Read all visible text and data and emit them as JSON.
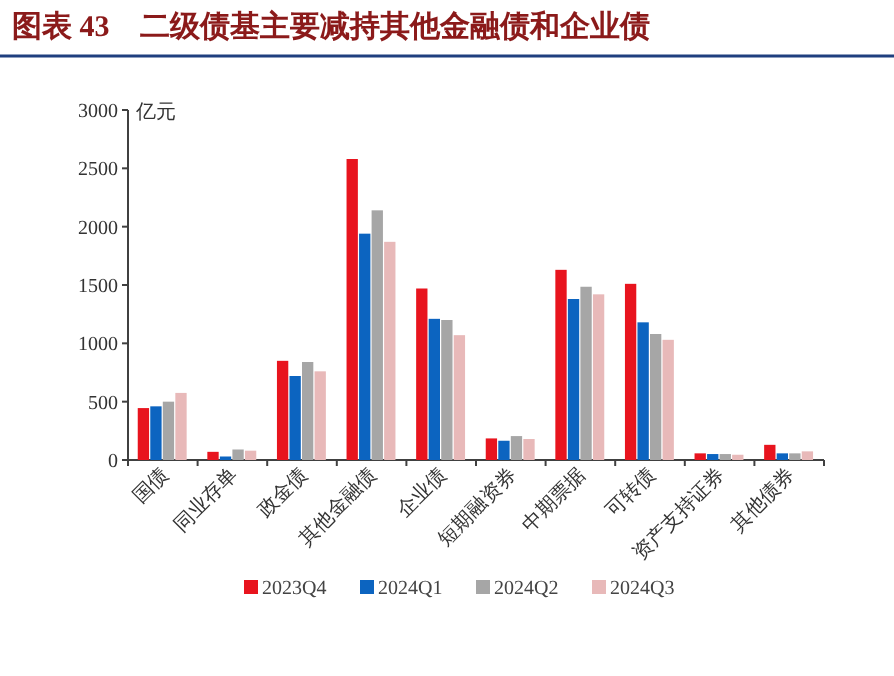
{
  "chart_data": {
    "type": "bar",
    "title": "图表 43　二级债基主要减持其他金融债和企业债",
    "ylabel": "亿元",
    "categories": [
      "国债",
      "同业存单",
      "政金债",
      "其他金融债",
      "企业债",
      "短期融资券",
      "中期票据",
      "可转债",
      "资产支持证券",
      "其他债券"
    ],
    "series": [
      {
        "name": "2023Q4",
        "color": "#e8141e",
        "values": [
          445,
          70,
          850,
          2580,
          1470,
          185,
          1630,
          1510,
          57,
          130
        ]
      },
      {
        "name": "2024Q1",
        "color": "#0c64c0",
        "values": [
          460,
          30,
          720,
          1940,
          1210,
          165,
          1380,
          1180,
          51,
          57
        ]
      },
      {
        "name": "2024Q2",
        "color": "#a6a6a6",
        "values": [
          500,
          90,
          840,
          2140,
          1200,
          205,
          1485,
          1080,
          51,
          57
        ]
      },
      {
        "name": "2024Q3",
        "color": "#e8b9b9",
        "values": [
          575,
          80,
          760,
          1870,
          1070,
          180,
          1420,
          1030,
          45,
          74
        ]
      }
    ],
    "ylim": [
      0,
      3000
    ],
    "yticks": [
      0,
      500,
      1000,
      1500,
      2000,
      2500,
      3000
    ],
    "legend": "bottom"
  }
}
